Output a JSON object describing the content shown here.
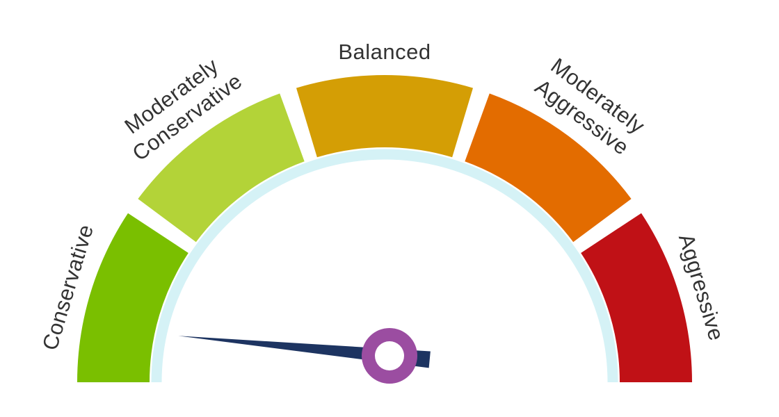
{
  "chart_data": {
    "type": "gauge",
    "segments": [
      {
        "label_lines": [
          "Conservative"
        ],
        "color": "#7abf00"
      },
      {
        "label_lines": [
          "Moderately",
          "Conservative"
        ],
        "color": "#b3d338"
      },
      {
        "label_lines": [
          "Balanced"
        ],
        "color": "#d49e05"
      },
      {
        "label_lines": [
          "Moderately",
          "Aggressive"
        ],
        "color": "#e36c00"
      },
      {
        "label_lines": [
          "Aggressive"
        ],
        "color": "#c01116"
      }
    ],
    "inner_ring_color": "#d5f2f6",
    "needle": {
      "value_fraction": 0.03,
      "color": "#1d3461",
      "hub_color": "#9b4da1"
    }
  }
}
